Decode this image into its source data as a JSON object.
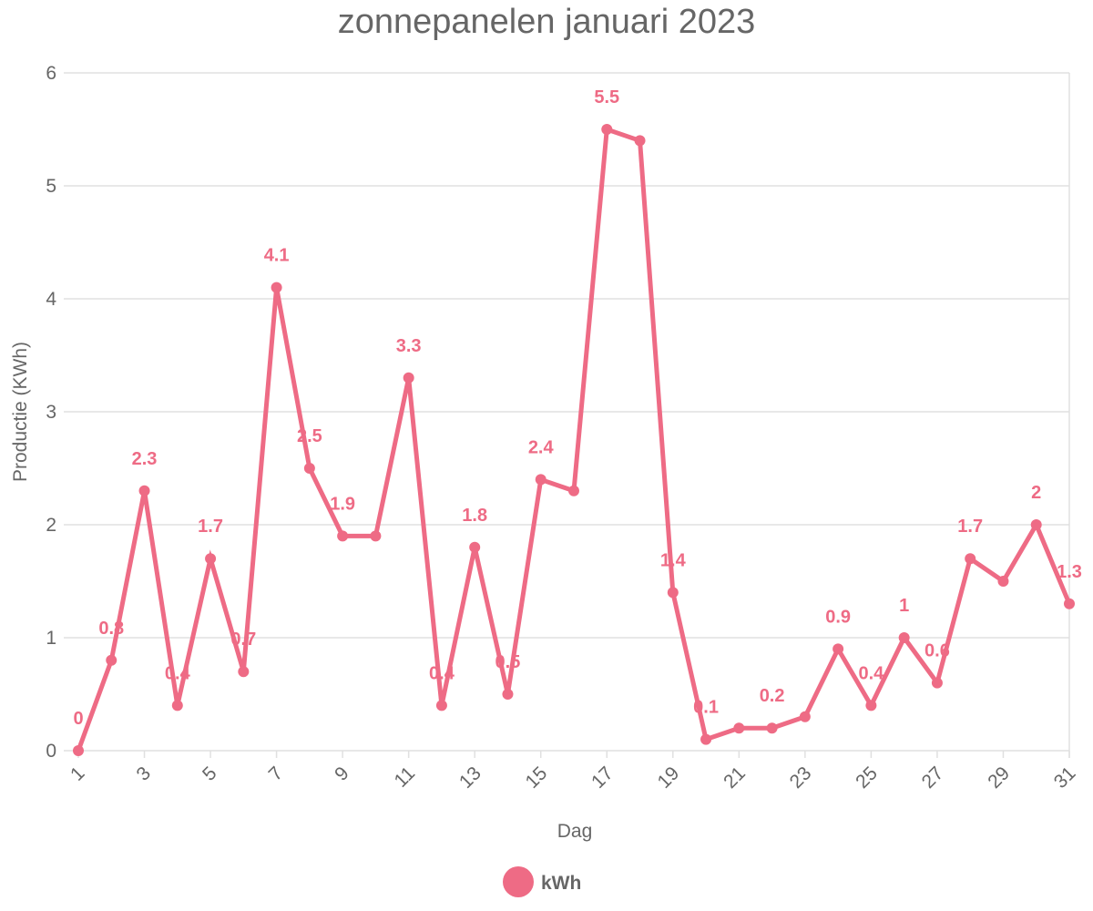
{
  "chart_data": {
    "type": "line",
    "title": "zonnepanelen januari 2023",
    "xlabel": "Dag",
    "ylabel": "Productie (KWh)",
    "ylim": [
      0,
      6
    ],
    "y_ticks": [
      "0",
      "1",
      "2",
      "3",
      "4",
      "5",
      "6"
    ],
    "x_tick_labels": [
      "1",
      "3",
      "5",
      "7",
      "9",
      "11",
      "13",
      "15",
      "17",
      "19",
      "21",
      "23",
      "25",
      "27",
      "29",
      "31"
    ],
    "x": [
      1,
      2,
      3,
      4,
      5,
      6,
      7,
      8,
      9,
      10,
      11,
      12,
      13,
      14,
      15,
      16,
      17,
      18,
      19,
      20,
      21,
      22,
      23,
      24,
      25,
      26,
      27,
      28,
      29,
      30,
      31
    ],
    "series": [
      {
        "name": "kWh",
        "color": "#ee6b85",
        "values": [
          0,
          0.8,
          2.3,
          0.4,
          1.7,
          0.7,
          4.1,
          2.5,
          1.9,
          1.9,
          3.3,
          0.4,
          1.8,
          0.5,
          2.4,
          2.3,
          5.5,
          5.4,
          1.4,
          0.1,
          0.2,
          0.2,
          0.3,
          0.9,
          0.4,
          1.0,
          0.6,
          1.7,
          1.5,
          2.0,
          1.3
        ]
      }
    ],
    "data_labels": [
      "0",
      "0.8",
      "2.3",
      "0.4",
      "1.7",
      "0.7",
      "4.1",
      "2.5",
      "1.9",
      "",
      "3.3",
      "0.4",
      "1.8",
      "0.5",
      "2.4",
      "",
      "5.5",
      "",
      "1.4",
      "0.1",
      "",
      "0.2",
      "",
      "0.9",
      "0.4",
      "1",
      "0.6",
      "1.7",
      "",
      "2",
      "1.3"
    ],
    "grid": true,
    "legend": {
      "position": "bottom",
      "label": "kWh"
    }
  }
}
